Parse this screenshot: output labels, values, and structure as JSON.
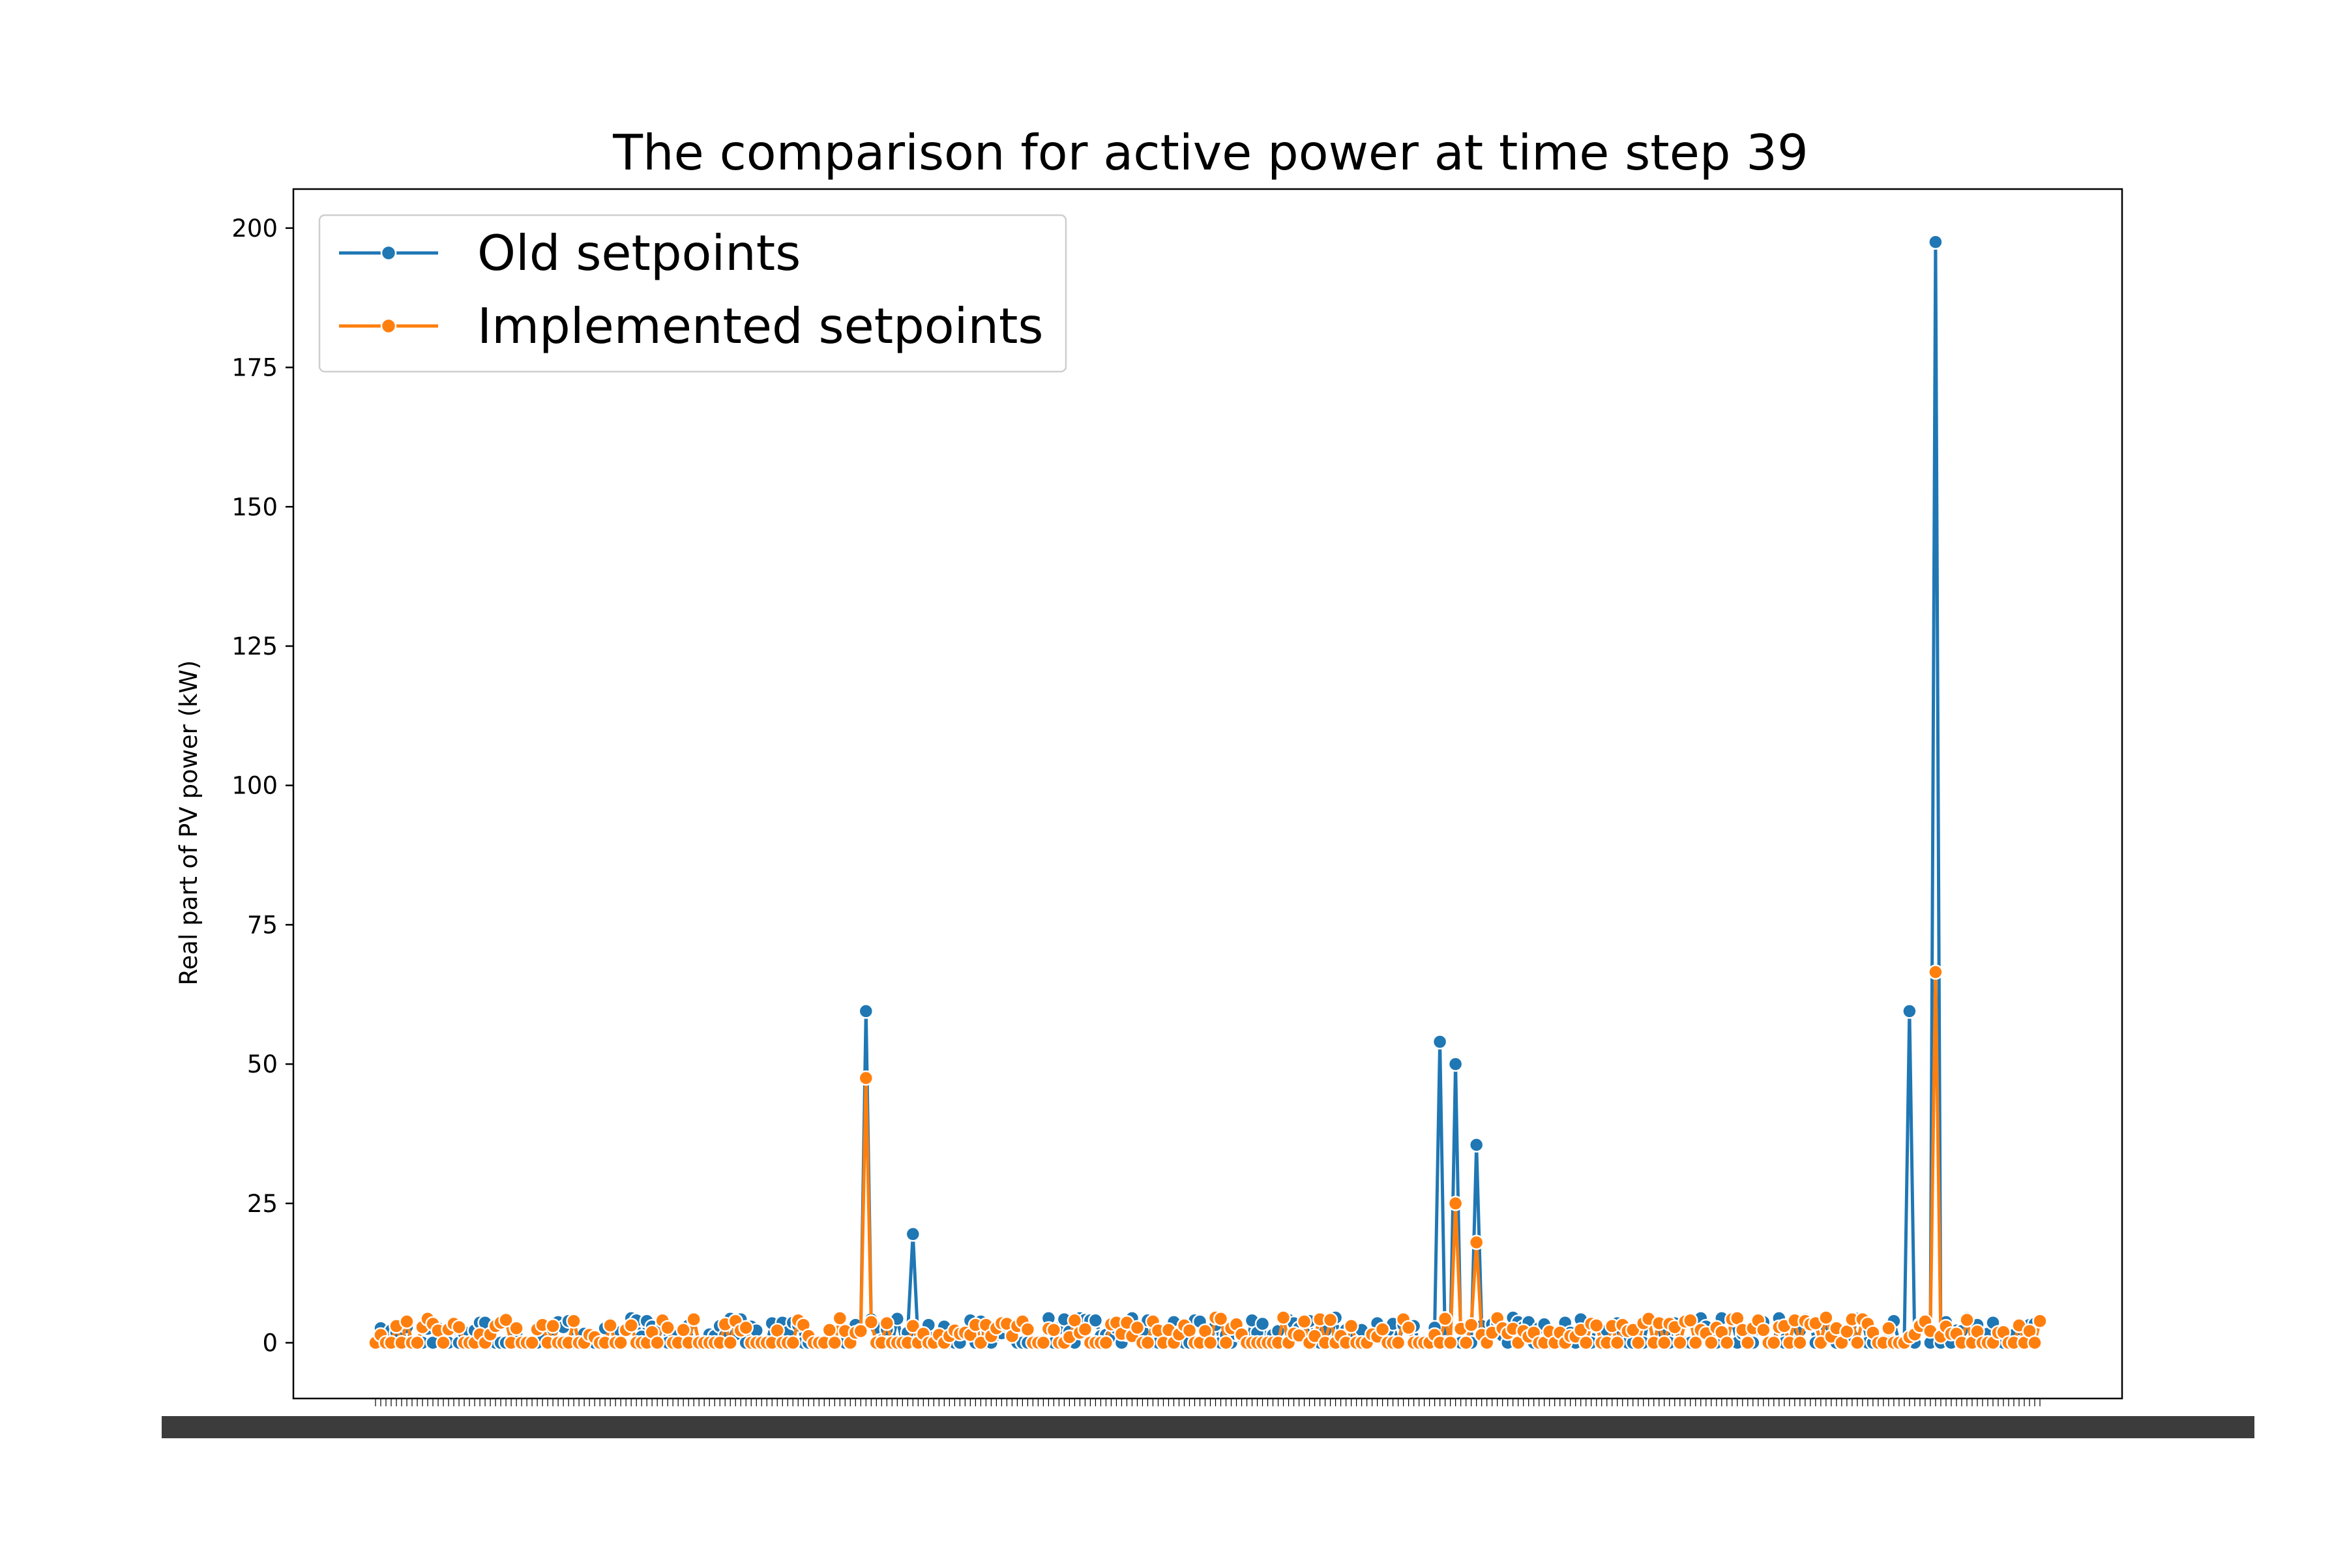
{
  "chart_data": {
    "type": "line",
    "title": "The comparison for active power at time step 39",
    "xlabel": "",
    "ylabel": "Real part of PV power (kW)",
    "ylim": [
      -10,
      207
    ],
    "yticks": [
      0,
      25,
      50,
      75,
      100,
      125,
      150,
      175,
      200
    ],
    "grid": false,
    "legend_placement": "top-left",
    "n_points": 320,
    "series": [
      {
        "name": "Old setpoints",
        "color": "#1f77b4",
        "spikes": [
          {
            "index": 94,
            "value": 59.5
          },
          {
            "index": 103,
            "value": 19.5
          },
          {
            "index": 204,
            "value": 54
          },
          {
            "index": 207,
            "value": 50
          },
          {
            "index": 211,
            "value": 35.5
          },
          {
            "index": 294,
            "value": 59.5
          },
          {
            "index": 299,
            "value": 197.5
          }
        ],
        "baseline_max": 4.5
      },
      {
        "name": "Implemented setpoints",
        "color": "#ff7f0e",
        "spikes": [
          {
            "index": 94,
            "value": 47.5
          },
          {
            "index": 207,
            "value": 25
          },
          {
            "index": 211,
            "value": 18
          },
          {
            "index": 299,
            "value": 66.5
          }
        ],
        "baseline_max": 4.5
      }
    ]
  }
}
